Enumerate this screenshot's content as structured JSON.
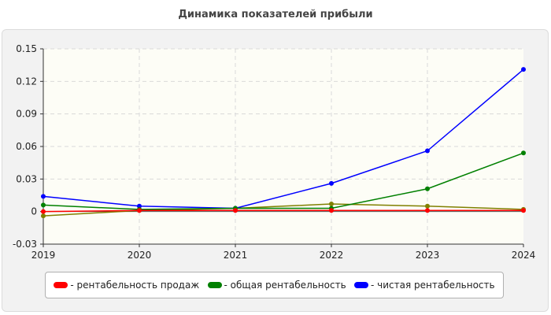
{
  "chart_data": {
    "type": "line",
    "title": "Динамика показателей прибыли",
    "x": [
      "2019",
      "2020",
      "2021",
      "2022",
      "2023",
      "2024"
    ],
    "ylim": [
      -0.03,
      0.15
    ],
    "yticks": [
      "0.15",
      "0.12",
      "0.09",
      "0.06",
      "0.03",
      "0",
      "-0.03"
    ],
    "ytick_values": [
      0.15,
      0.12,
      0.09,
      0.06,
      0.03,
      0,
      -0.03
    ],
    "grid": true,
    "legend_position": "bottom",
    "series": [
      {
        "name": "- рентабельность продаж",
        "color": "#ff0000",
        "values": [
          0.0,
          0.001,
          0.001,
          0.001,
          0.001,
          0.001
        ]
      },
      {
        "name": "- общая рентабельность",
        "color": "#008000",
        "values": [
          0.006,
          0.002,
          0.003,
          0.003,
          0.021,
          0.054
        ]
      },
      {
        "name": "- чистая рентабельность",
        "color": "#0000ff",
        "values": [
          0.014,
          0.005,
          0.003,
          0.026,
          0.056,
          0.131
        ]
      },
      {
        "name": "",
        "color": "#808000",
        "values": [
          -0.004,
          0.001,
          0.003,
          0.007,
          0.005,
          0.002
        ]
      }
    ]
  }
}
